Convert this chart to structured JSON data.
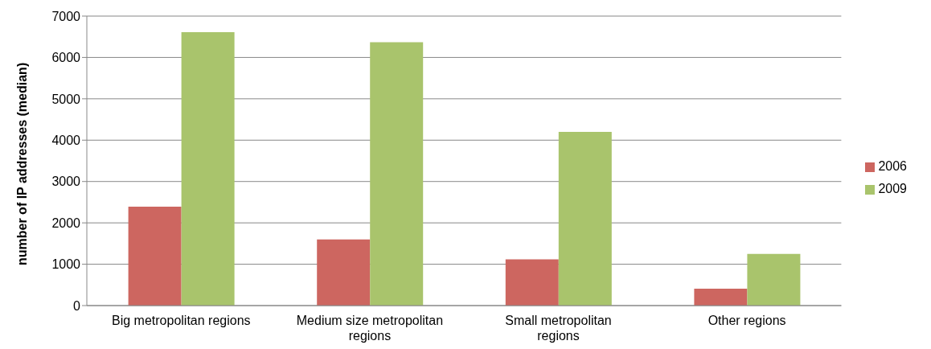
{
  "chart_data": {
    "type": "bar",
    "ylabel": "number of IP addresses (median)",
    "categories": [
      "Big metropolitan regions",
      "Medium size metropolitan regions",
      "Small metropolitan regions",
      "Other regions"
    ],
    "series": [
      {
        "name": "2006",
        "color": "#cd6660",
        "values": [
          2390,
          1600,
          1120,
          410
        ]
      },
      {
        "name": "2009",
        "color": "#a9c46c",
        "values": [
          6610,
          6370,
          4200,
          1250
        ]
      }
    ],
    "ylim": [
      0,
      7000
    ],
    "yticks": [
      0,
      1000,
      2000,
      3000,
      4000,
      5000,
      6000,
      7000
    ],
    "grid": "y",
    "legend": "right"
  }
}
